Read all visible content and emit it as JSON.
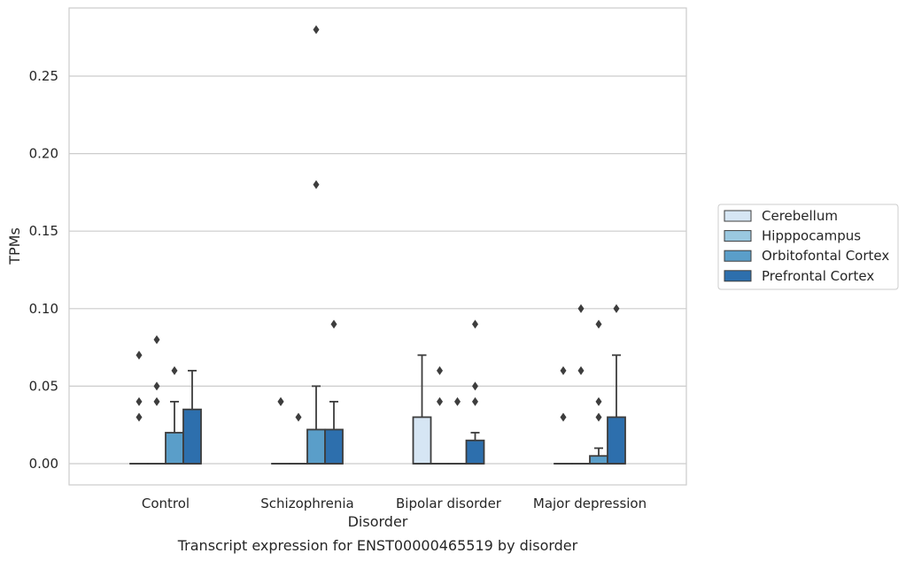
{
  "chart_data": {
    "type": "box",
    "title": "",
    "caption": "Transcript expression for ENST00000465519 by disorder",
    "xlabel": "Disorder",
    "ylabel": "TPMs",
    "categories": [
      "Control",
      "Schizophrenia",
      "Bipolar disorder",
      "Major depression"
    ],
    "ylim": [
      -0.014,
      0.294
    ],
    "yticks": [
      0.0,
      0.05,
      0.1,
      0.15,
      0.2,
      0.25
    ],
    "ytick_labels": [
      "0.00",
      "0.05",
      "0.10",
      "0.15",
      "0.20",
      "0.25"
    ],
    "grid": "horizontal",
    "legend_position": "right",
    "series": [
      {
        "name": "Cerebellum",
        "color": "#d6e6f4",
        "boxes": [
          {
            "q1": 0.0,
            "median": 0.0,
            "q3": 0.0,
            "whisker_low": 0.0,
            "whisker_high": 0.0,
            "outliers": [
              0.03,
              0.04,
              0.07
            ]
          },
          {
            "q1": 0.0,
            "median": 0.0,
            "q3": 0.0,
            "whisker_low": 0.0,
            "whisker_high": 0.0,
            "outliers": [
              0.04,
              0.04
            ]
          },
          {
            "q1": 0.0,
            "median": 0.0,
            "q3": 0.03,
            "whisker_low": 0.0,
            "whisker_high": 0.07,
            "outliers": []
          },
          {
            "q1": 0.0,
            "median": 0.0,
            "q3": 0.0,
            "whisker_low": 0.0,
            "whisker_high": 0.0,
            "outliers": [
              0.03,
              0.06
            ]
          }
        ]
      },
      {
        "name": "Hipppocampus",
        "color": "#9ac8e0",
        "boxes": [
          {
            "q1": 0.0,
            "median": 0.0,
            "q3": 0.0,
            "whisker_low": 0.0,
            "whisker_high": 0.0,
            "outliers": [
              0.04,
              0.05,
              0.08
            ]
          },
          {
            "q1": 0.0,
            "median": 0.0,
            "q3": 0.0,
            "whisker_low": 0.0,
            "whisker_high": 0.0,
            "outliers": [
              0.03
            ]
          },
          {
            "q1": 0.0,
            "median": 0.0,
            "q3": 0.0,
            "whisker_low": 0.0,
            "whisker_high": 0.0,
            "outliers": [
              0.04,
              0.06
            ]
          },
          {
            "q1": 0.0,
            "median": 0.0,
            "q3": 0.0,
            "whisker_low": 0.0,
            "whisker_high": 0.0,
            "outliers": [
              0.06,
              0.1
            ]
          }
        ]
      },
      {
        "name": "Orbitofontal Cortex",
        "color": "#5a9ec9",
        "boxes": [
          {
            "q1": 0.0,
            "median": 0.0,
            "q3": 0.02,
            "whisker_low": 0.0,
            "whisker_high": 0.04,
            "outliers": [
              0.06
            ]
          },
          {
            "q1": 0.0,
            "median": 0.0,
            "q3": 0.022,
            "whisker_low": 0.0,
            "whisker_high": 0.05,
            "outliers": [
              0.18,
              0.28
            ]
          },
          {
            "q1": 0.0,
            "median": 0.0,
            "q3": 0.0,
            "whisker_low": 0.0,
            "whisker_high": 0.0,
            "outliers": [
              0.04
            ]
          },
          {
            "q1": 0.0,
            "median": 0.0,
            "q3": 0.005,
            "whisker_low": 0.0,
            "whisker_high": 0.01,
            "outliers": [
              0.03,
              0.04,
              0.09
            ]
          }
        ]
      },
      {
        "name": "Prefrontal Cortex",
        "color": "#2d6fad",
        "boxes": [
          {
            "q1": 0.0,
            "median": 0.0,
            "q3": 0.035,
            "whisker_low": 0.0,
            "whisker_high": 0.06,
            "outliers": []
          },
          {
            "q1": 0.0,
            "median": 0.0,
            "q3": 0.022,
            "whisker_low": 0.0,
            "whisker_high": 0.04,
            "outliers": [
              0.09
            ]
          },
          {
            "q1": 0.0,
            "median": 0.0,
            "q3": 0.015,
            "whisker_low": 0.0,
            "whisker_high": 0.02,
            "outliers": [
              0.04,
              0.05,
              0.09
            ]
          },
          {
            "q1": 0.0,
            "median": 0.0,
            "q3": 0.03,
            "whisker_low": 0.0,
            "whisker_high": 0.07,
            "outliers": [
              0.1
            ]
          }
        ]
      }
    ]
  }
}
